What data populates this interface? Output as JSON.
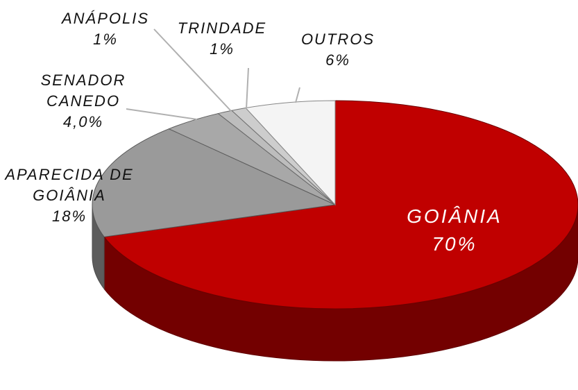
{
  "chart_data": {
    "type": "pie3d",
    "categories": [
      "GOIÂNIA",
      "APARECIDA DE GOIÂNIA",
      "SENADOR CANEDO",
      "ANÁPOLIS",
      "TRINDADE",
      "OUTROS"
    ],
    "values": [
      70,
      18,
      4,
      1,
      1,
      6
    ],
    "value_labels": [
      "70%",
      "18%",
      "4,0%",
      "1%",
      "1%",
      "6%"
    ],
    "colors": [
      "#c00000",
      "#9a9a9a",
      "#a8a8a8",
      "#bdbdbd",
      "#cdcdcd",
      "#f4f4f4"
    ]
  }
}
